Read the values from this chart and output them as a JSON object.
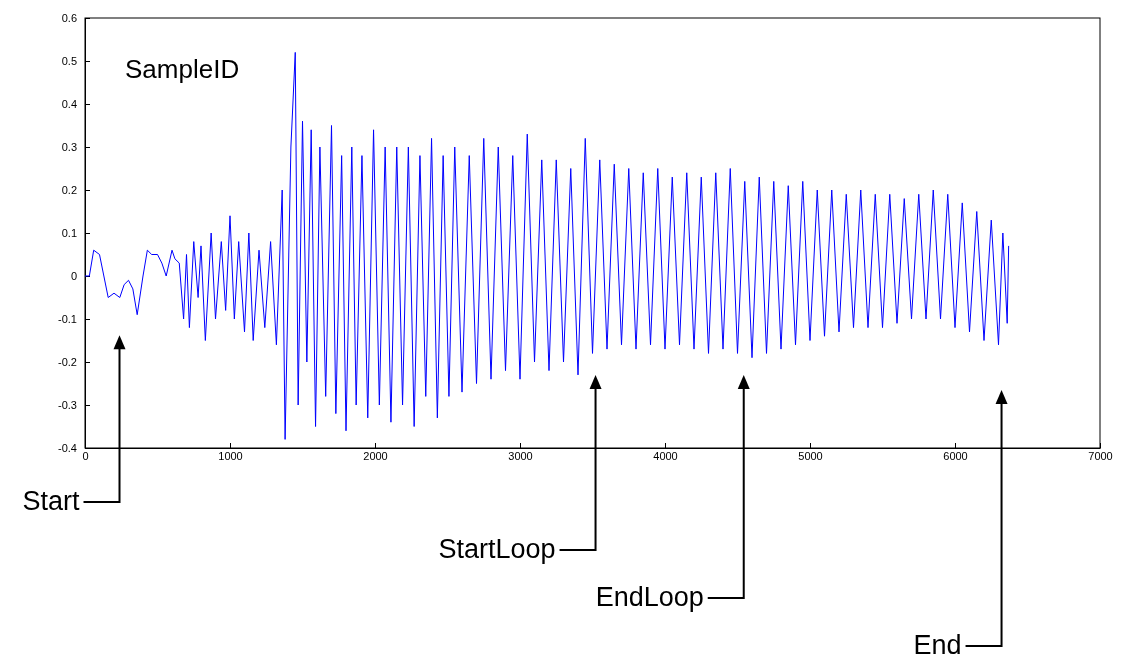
{
  "chart_data": {
    "type": "line",
    "title": "SampleID",
    "xlim": [
      0,
      7000
    ],
    "xticks": [
      0,
      1000,
      2000,
      3000,
      4000,
      5000,
      6000,
      7000
    ],
    "ylim": [
      -0.4,
      0.6
    ],
    "yticks": [
      -0.4,
      -0.3,
      -0.2,
      -0.1,
      0,
      0.1,
      0.2,
      0.3,
      0.4,
      0.5,
      0.6
    ],
    "grid": false,
    "series": [
      {
        "color": "#0000ff",
        "x": [
          0,
          30,
          60,
          100,
          130,
          160,
          200,
          240,
          270,
          300,
          330,
          360,
          400,
          430,
          460,
          500,
          530,
          560,
          600,
          620,
          650,
          680,
          700,
          720,
          750,
          780,
          800,
          830,
          870,
          900,
          940,
          970,
          1000,
          1030,
          1060,
          1100,
          1130,
          1160,
          1200,
          1240,
          1280,
          1320,
          1360,
          1380,
          1420,
          1450,
          1470,
          1500,
          1530,
          1560,
          1590,
          1620,
          1660,
          1700,
          1730,
          1770,
          1800,
          1840,
          1870,
          1910,
          1950,
          1990,
          2030,
          2070,
          2110,
          2150,
          2190,
          2230,
          2270,
          2310,
          2350,
          2390,
          2430,
          2470,
          2510,
          2550,
          2600,
          2650,
          2700,
          2750,
          2800,
          2850,
          2900,
          2950,
          3000,
          3050,
          3100,
          3150,
          3200,
          3250,
          3300,
          3350,
          3400,
          3450,
          3500,
          3550,
          3600,
          3650,
          3700,
          3750,
          3800,
          3850,
          3900,
          3950,
          4000,
          4050,
          4100,
          4150,
          4200,
          4250,
          4300,
          4350,
          4400,
          4450,
          4500,
          4550,
          4600,
          4650,
          4700,
          4750,
          4800,
          4850,
          4900,
          4950,
          5000,
          5050,
          5100,
          5150,
          5200,
          5250,
          5300,
          5350,
          5400,
          5450,
          5500,
          5550,
          5600,
          5650,
          5700,
          5750,
          5800,
          5850,
          5900,
          5950,
          6000,
          6050,
          6100,
          6150,
          6200,
          6250,
          6300,
          6330,
          6360,
          6370
        ],
        "values": [
          0,
          0,
          0.06,
          0.05,
          0,
          -0.05,
          -0.04,
          -0.05,
          -0.02,
          -0.01,
          -0.03,
          -0.09,
          0,
          0.06,
          0.05,
          0.05,
          0.03,
          0,
          0.06,
          0.04,
          0.03,
          -0.1,
          0.05,
          -0.12,
          0.08,
          -0.05,
          0.07,
          -0.15,
          0.1,
          -0.1,
          0.08,
          -0.08,
          0.14,
          -0.1,
          0.08,
          -0.13,
          0.1,
          -0.15,
          0.06,
          -0.12,
          0.08,
          -0.16,
          0.2,
          -0.38,
          0.3,
          0.52,
          -0.3,
          0.36,
          -0.2,
          0.34,
          -0.35,
          0.3,
          -0.28,
          0.35,
          -0.32,
          0.28,
          -0.36,
          0.3,
          -0.3,
          0.28,
          -0.33,
          0.34,
          -0.3,
          0.3,
          -0.34,
          0.3,
          -0.3,
          0.3,
          -0.35,
          0.28,
          -0.28,
          0.32,
          -0.33,
          0.28,
          -0.28,
          0.3,
          -0.27,
          0.28,
          -0.25,
          0.32,
          -0.24,
          0.3,
          -0.22,
          0.28,
          -0.24,
          0.33,
          -0.2,
          0.27,
          -0.22,
          0.27,
          -0.2,
          0.25,
          -0.23,
          0.32,
          -0.18,
          0.27,
          -0.17,
          0.26,
          -0.16,
          0.25,
          -0.17,
          0.24,
          -0.16,
          0.25,
          -0.17,
          0.23,
          -0.16,
          0.24,
          -0.17,
          0.23,
          -0.18,
          0.24,
          -0.17,
          0.25,
          -0.18,
          0.22,
          -0.19,
          0.23,
          -0.18,
          0.22,
          -0.17,
          0.21,
          -0.16,
          0.22,
          -0.15,
          0.2,
          -0.14,
          0.2,
          -0.13,
          0.19,
          -0.12,
          0.2,
          -0.12,
          0.19,
          -0.12,
          0.19,
          -0.11,
          0.18,
          -0.1,
          0.19,
          -0.1,
          0.2,
          -0.1,
          0.19,
          -0.12,
          0.17,
          -0.13,
          0.15,
          -0.15,
          0.13,
          -0.16,
          0.1,
          -0.11,
          0.07
        ]
      }
    ],
    "annotations": [
      "Start",
      "StartLoop",
      "EndLoop",
      "End"
    ]
  }
}
